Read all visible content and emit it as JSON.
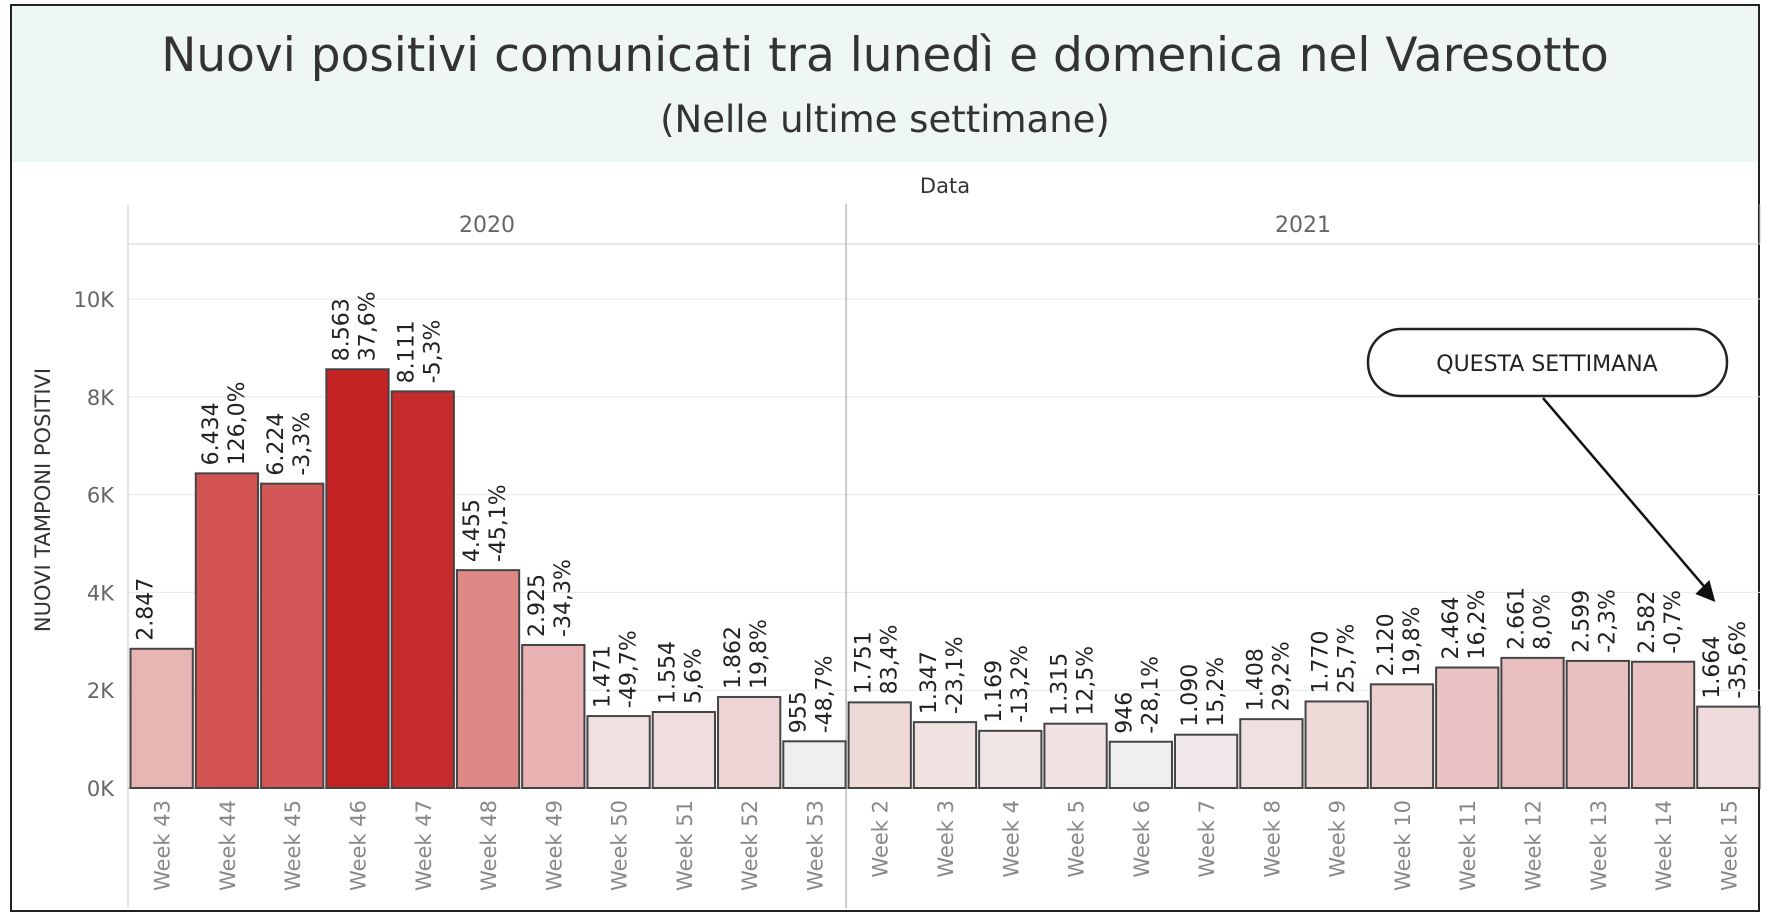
{
  "title": "Nuovi positivi comunicati tra lunedì e domenica nel Varesotto",
  "subtitle": "(Nelle ultime settimane)",
  "chart_data": {
    "type": "bar",
    "column_header": "Data",
    "ylabel": "NUOVI TAMPONI POSITIVI",
    "ylim": [
      0,
      11000
    ],
    "yticks": [
      0,
      2000,
      4000,
      6000,
      8000,
      10000
    ],
    "ytick_labels": [
      "0K",
      "2K",
      "4K",
      "6K",
      "8K",
      "10K"
    ],
    "grid": true,
    "groups": [
      {
        "name": "2020",
        "bars": [
          {
            "category": "Week 43",
            "value": 2847,
            "label": "2.847",
            "change": "",
            "color": "#e8b5b5"
          },
          {
            "category": "Week 44",
            "value": 6434,
            "label": "6.434",
            "change": "126,0%",
            "color": "#d35353"
          },
          {
            "category": "Week 45",
            "value": 6224,
            "label": "6.224",
            "change": "-3,3%",
            "color": "#d45757"
          },
          {
            "category": "Week 46",
            "value": 8563,
            "label": "8.563",
            "change": "37,6%",
            "color": "#c42222"
          },
          {
            "category": "Week 47",
            "value": 8111,
            "label": "8.111",
            "change": "-5,3%",
            "color": "#c72c2c"
          },
          {
            "category": "Week 48",
            "value": 4455,
            "label": "4.455",
            "change": "-45,1%",
            "color": "#de8888"
          },
          {
            "category": "Week 49",
            "value": 2925,
            "label": "2.925",
            "change": "-34,3%",
            "color": "#e8b2b2"
          },
          {
            "category": "Week 50",
            "value": 1471,
            "label": "1.471",
            "change": "-49,7%",
            "color": "#f0e0e0"
          },
          {
            "category": "Week 51",
            "value": 1554,
            "label": "1.554",
            "change": "5,6%",
            "color": "#f0dede"
          },
          {
            "category": "Week 52",
            "value": 1862,
            "label": "1.862",
            "change": "19,8%",
            "color": "#eed5d5"
          },
          {
            "category": "Week 53",
            "value": 955,
            "label": "955",
            "change": "-48,7%",
            "color": "#f1eeee"
          }
        ]
      },
      {
        "name": "2021",
        "bars": [
          {
            "category": "Week 2",
            "value": 1751,
            "label": "1.751",
            "change": "83,4%",
            "color": "#efd8d8"
          },
          {
            "category": "Week 3",
            "value": 1347,
            "label": "1.347",
            "change": "-23,1%",
            "color": "#f1e2e2"
          },
          {
            "category": "Week 4",
            "value": 1169,
            "label": "1.169",
            "change": "-13,2%",
            "color": "#f1e6e6"
          },
          {
            "category": "Week 5",
            "value": 1315,
            "label": "1.315",
            "change": "12,5%",
            "color": "#f1e3e3"
          },
          {
            "category": "Week 6",
            "value": 946,
            "label": "946",
            "change": "-28,1%",
            "color": "#f1eeee"
          },
          {
            "category": "Week 7",
            "value": 1090,
            "label": "1.090",
            "change": "15,2%",
            "color": "#f1e9e9"
          },
          {
            "category": "Week 8",
            "value": 1408,
            "label": "1.408",
            "change": "29,2%",
            "color": "#f0e1e1"
          },
          {
            "category": "Week 9",
            "value": 1770,
            "label": "1.770",
            "change": "25,7%",
            "color": "#efd8d8"
          },
          {
            "category": "Week 10",
            "value": 2120,
            "label": "2.120",
            "change": "19,8%",
            "color": "#edcfcf"
          },
          {
            "category": "Week 11",
            "value": 2464,
            "label": "2.464",
            "change": "16,2%",
            "color": "#eac4c4"
          },
          {
            "category": "Week 12",
            "value": 2661,
            "label": "2.661",
            "change": "8,0%",
            "color": "#e9bebe"
          },
          {
            "category": "Week 13",
            "value": 2599,
            "label": "2.599",
            "change": "-2,3%",
            "color": "#e9c0c0"
          },
          {
            "category": "Week 14",
            "value": 2582,
            "label": "2.582",
            "change": "-0,7%",
            "color": "#e9c0c0"
          },
          {
            "category": "Week 15",
            "value": 1664,
            "label": "1.664",
            "change": "-35,6%",
            "color": "#efdbdb"
          }
        ]
      }
    ],
    "annotation": {
      "text": "QUESTA SETTIMANA",
      "target": "Week 15"
    }
  }
}
